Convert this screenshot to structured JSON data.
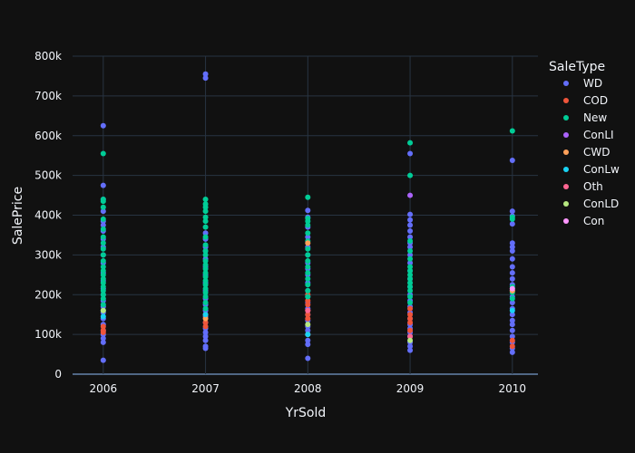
{
  "colors": {
    "background": "#111111",
    "grid": "#283442",
    "zeroline": "#506784",
    "text": "#f2f5fa"
  },
  "chart_data": {
    "type": "scatter",
    "xlabel": "YrSold",
    "ylabel": "SalePrice",
    "x_ticks": [
      "2006",
      "2007",
      "2008",
      "2009",
      "2010"
    ],
    "y_ticks": [
      "0",
      "100k",
      "200k",
      "300k",
      "400k",
      "500k",
      "600k",
      "700k",
      "800k"
    ],
    "y_tick_values": [
      0,
      100000,
      200000,
      300000,
      400000,
      500000,
      600000,
      700000,
      800000
    ],
    "x_range": [
      2005.7,
      2010.25
    ],
    "y_range": [
      0,
      800000
    ],
    "legend_title": "SaleType",
    "legend_position": "right",
    "series": [
      {
        "name": "WD",
        "color": "#636efa",
        "points": [
          [
            2006,
            35000
          ],
          [
            2006,
            80000
          ],
          [
            2006,
            90000
          ],
          [
            2006,
            100000
          ],
          [
            2006,
            110000
          ],
          [
            2006,
            125000
          ],
          [
            2006,
            140000
          ],
          [
            2006,
            155000
          ],
          [
            2006,
            170000
          ],
          [
            2006,
            185000
          ],
          [
            2006,
            200000
          ],
          [
            2006,
            215000
          ],
          [
            2006,
            235000
          ],
          [
            2006,
            255000
          ],
          [
            2006,
            280000
          ],
          [
            2006,
            300000
          ],
          [
            2006,
            320000
          ],
          [
            2006,
            340000
          ],
          [
            2006,
            360000
          ],
          [
            2006,
            375000
          ],
          [
            2006,
            385000
          ],
          [
            2006,
            410000
          ],
          [
            2006,
            440000
          ],
          [
            2006,
            475000
          ],
          [
            2006,
            625000
          ],
          [
            2007,
            65000
          ],
          [
            2007,
            70000
          ],
          [
            2007,
            85000
          ],
          [
            2007,
            95000
          ],
          [
            2007,
            105000
          ],
          [
            2007,
            115000
          ],
          [
            2007,
            130000
          ],
          [
            2007,
            145000
          ],
          [
            2007,
            160000
          ],
          [
            2007,
            175000
          ],
          [
            2007,
            190000
          ],
          [
            2007,
            210000
          ],
          [
            2007,
            230000
          ],
          [
            2007,
            250000
          ],
          [
            2007,
            270000
          ],
          [
            2007,
            290000
          ],
          [
            2007,
            310000
          ],
          [
            2007,
            320000
          ],
          [
            2007,
            340000
          ],
          [
            2007,
            355000
          ],
          [
            2007,
            745000
          ],
          [
            2007,
            755000
          ],
          [
            2008,
            40000
          ],
          [
            2008,
            75000
          ],
          [
            2008,
            85000
          ],
          [
            2008,
            100000
          ],
          [
            2008,
            110000
          ],
          [
            2008,
            120000
          ],
          [
            2008,
            135000
          ],
          [
            2008,
            150000
          ],
          [
            2008,
            165000
          ],
          [
            2008,
            180000
          ],
          [
            2008,
            195000
          ],
          [
            2008,
            210000
          ],
          [
            2008,
            230000
          ],
          [
            2008,
            250000
          ],
          [
            2008,
            265000
          ],
          [
            2008,
            280000
          ],
          [
            2008,
            300000
          ],
          [
            2008,
            320000
          ],
          [
            2008,
            345000
          ],
          [
            2008,
            370000
          ],
          [
            2008,
            395000
          ],
          [
            2008,
            412000
          ],
          [
            2009,
            60000
          ],
          [
            2009,
            70000
          ],
          [
            2009,
            80000
          ],
          [
            2009,
            95000
          ],
          [
            2009,
            105000
          ],
          [
            2009,
            115000
          ],
          [
            2009,
            125000
          ],
          [
            2009,
            140000
          ],
          [
            2009,
            155000
          ],
          [
            2009,
            170000
          ],
          [
            2009,
            185000
          ],
          [
            2009,
            200000
          ],
          [
            2009,
            220000
          ],
          [
            2009,
            240000
          ],
          [
            2009,
            260000
          ],
          [
            2009,
            280000
          ],
          [
            2009,
            300000
          ],
          [
            2009,
            320000
          ],
          [
            2009,
            330000
          ],
          [
            2009,
            345000
          ],
          [
            2009,
            360000
          ],
          [
            2009,
            375000
          ],
          [
            2009,
            388000
          ],
          [
            2009,
            402000
          ],
          [
            2009,
            555000
          ],
          [
            2010,
            55000
          ],
          [
            2010,
            65000
          ],
          [
            2010,
            80000
          ],
          [
            2010,
            95000
          ],
          [
            2010,
            110000
          ],
          [
            2010,
            125000
          ],
          [
            2010,
            135000
          ],
          [
            2010,
            150000
          ],
          [
            2010,
            165000
          ],
          [
            2010,
            180000
          ],
          [
            2010,
            195000
          ],
          [
            2010,
            210000
          ],
          [
            2010,
            225000
          ],
          [
            2010,
            240000
          ],
          [
            2010,
            255000
          ],
          [
            2010,
            270000
          ],
          [
            2010,
            290000
          ],
          [
            2010,
            310000
          ],
          [
            2010,
            320000
          ],
          [
            2010,
            330000
          ],
          [
            2010,
            378000
          ],
          [
            2010,
            398000
          ],
          [
            2010,
            410000
          ],
          [
            2010,
            538000
          ]
        ]
      },
      {
        "name": "COD",
        "color": "#ef553b",
        "points": [
          [
            2006,
            110000
          ],
          [
            2006,
            120000
          ],
          [
            2006,
            105000
          ],
          [
            2007,
            120000
          ],
          [
            2007,
            130000
          ],
          [
            2007,
            150000
          ],
          [
            2008,
            100000
          ],
          [
            2008,
            140000
          ],
          [
            2008,
            150000
          ],
          [
            2008,
            160000
          ],
          [
            2008,
            175000
          ],
          [
            2008,
            185000
          ],
          [
            2008,
            200000
          ],
          [
            2009,
            110000
          ],
          [
            2009,
            130000
          ],
          [
            2009,
            140000
          ],
          [
            2009,
            150000
          ],
          [
            2009,
            165000
          ],
          [
            2010,
            70000
          ],
          [
            2010,
            85000
          ]
        ]
      },
      {
        "name": "New",
        "color": "#00cc96",
        "points": [
          [
            2006,
            160000
          ],
          [
            2006,
            175000
          ],
          [
            2006,
            190000
          ],
          [
            2006,
            200000
          ],
          [
            2006,
            210000
          ],
          [
            2006,
            220000
          ],
          [
            2006,
            230000
          ],
          [
            2006,
            240000
          ],
          [
            2006,
            250000
          ],
          [
            2006,
            260000
          ],
          [
            2006,
            270000
          ],
          [
            2006,
            285000
          ],
          [
            2006,
            300000
          ],
          [
            2006,
            315000
          ],
          [
            2006,
            330000
          ],
          [
            2006,
            345000
          ],
          [
            2006,
            365000
          ],
          [
            2006,
            390000
          ],
          [
            2006,
            420000
          ],
          [
            2006,
            435000
          ],
          [
            2006,
            440000
          ],
          [
            2006,
            555000
          ],
          [
            2007,
            165000
          ],
          [
            2007,
            180000
          ],
          [
            2007,
            195000
          ],
          [
            2007,
            205000
          ],
          [
            2007,
            215000
          ],
          [
            2007,
            225000
          ],
          [
            2007,
            235000
          ],
          [
            2007,
            245000
          ],
          [
            2007,
            255000
          ],
          [
            2007,
            265000
          ],
          [
            2007,
            275000
          ],
          [
            2007,
            285000
          ],
          [
            2007,
            300000
          ],
          [
            2007,
            310000
          ],
          [
            2007,
            325000
          ],
          [
            2007,
            345000
          ],
          [
            2007,
            370000
          ],
          [
            2007,
            385000
          ],
          [
            2007,
            395000
          ],
          [
            2007,
            410000
          ],
          [
            2007,
            420000
          ],
          [
            2007,
            428000
          ],
          [
            2007,
            440000
          ],
          [
            2008,
            195000
          ],
          [
            2008,
            210000
          ],
          [
            2008,
            225000
          ],
          [
            2008,
            240000
          ],
          [
            2008,
            255000
          ],
          [
            2008,
            270000
          ],
          [
            2008,
            285000
          ],
          [
            2008,
            300000
          ],
          [
            2008,
            315000
          ],
          [
            2008,
            335000
          ],
          [
            2008,
            355000
          ],
          [
            2008,
            375000
          ],
          [
            2008,
            385000
          ],
          [
            2008,
            392000
          ],
          [
            2008,
            445000
          ],
          [
            2009,
            180000
          ],
          [
            2009,
            195000
          ],
          [
            2009,
            210000
          ],
          [
            2009,
            220000
          ],
          [
            2009,
            230000
          ],
          [
            2009,
            240000
          ],
          [
            2009,
            250000
          ],
          [
            2009,
            260000
          ],
          [
            2009,
            270000
          ],
          [
            2009,
            290000
          ],
          [
            2009,
            310000
          ],
          [
            2009,
            335000
          ],
          [
            2009,
            500000
          ],
          [
            2009,
            582000
          ],
          [
            2010,
            190000
          ],
          [
            2010,
            205000
          ],
          [
            2010,
            220000
          ],
          [
            2010,
            390000
          ],
          [
            2010,
            395000
          ],
          [
            2010,
            612000
          ]
        ]
      },
      {
        "name": "ConLI",
        "color": "#ab63fa",
        "points": [
          [
            2009,
            450000
          ]
        ]
      },
      {
        "name": "CWD",
        "color": "#ffa15a",
        "points": [
          [
            2007,
            140000
          ],
          [
            2008,
            330000
          ],
          [
            2010,
            210000
          ]
        ]
      },
      {
        "name": "ConLw",
        "color": "#19d3f3",
        "points": [
          [
            2006,
            145000
          ],
          [
            2007,
            150000
          ],
          [
            2008,
            100000
          ],
          [
            2010,
            160000
          ]
        ]
      },
      {
        "name": "Oth",
        "color": "#ff6692",
        "points": [
          [
            2008,
            160000
          ],
          [
            2009,
            95000
          ]
        ]
      },
      {
        "name": "ConLD",
        "color": "#b6e880",
        "points": [
          [
            2006,
            160000
          ],
          [
            2008,
            125000
          ],
          [
            2009,
            85000
          ]
        ]
      },
      {
        "name": "Con",
        "color": "#ff97ff",
        "points": [
          [
            2010,
            215000
          ]
        ]
      }
    ]
  }
}
